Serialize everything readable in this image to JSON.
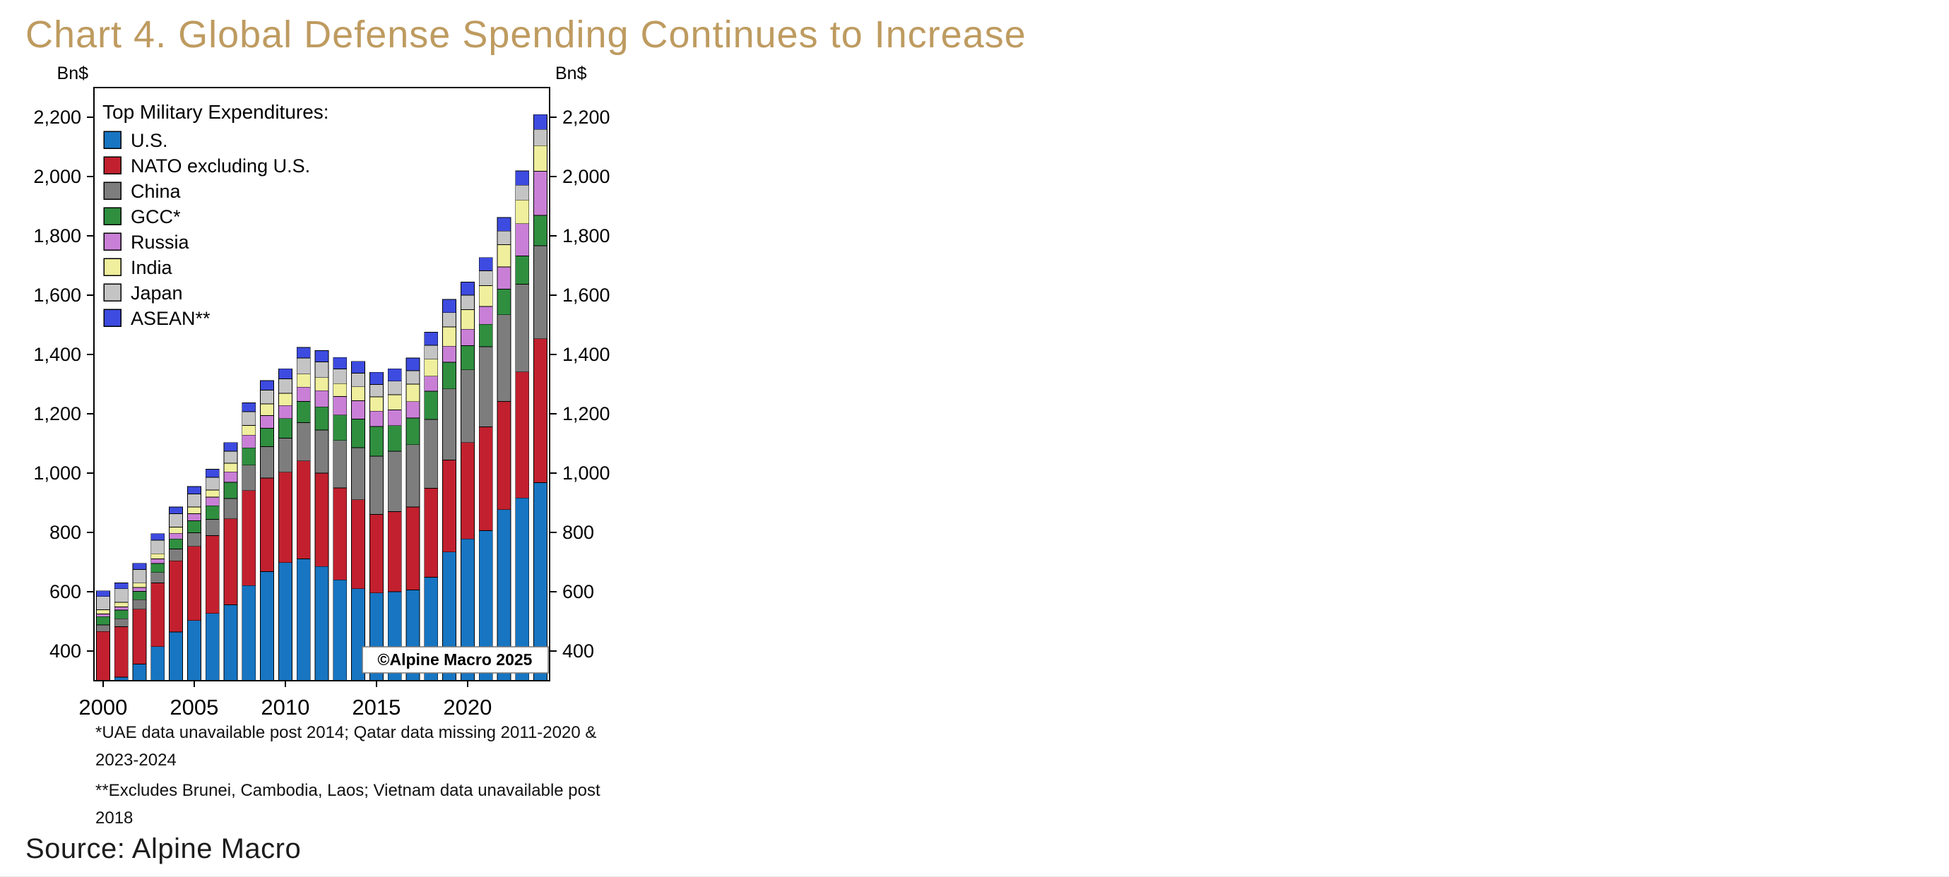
{
  "page": {
    "title": "Chart 4. Global Defense Spending Continues to Increase",
    "title_color": "#be9b60",
    "footnotes": [
      "*UAE data unavailable post 2014; Qatar data missing 2011-2020 & 2023-2024",
      "**Excludes Brunei, Cambodia, Laos; Vietnam data unavailable post 2018"
    ],
    "source": "Source: Alpine Macro"
  },
  "chart_data": {
    "type": "bar",
    "stacked": true,
    "legend_title": "Top Military Expenditures:",
    "legend_position": "top-left-inside",
    "axis_unit_label": "Bn$",
    "watermark": "©Alpine Macro 2025",
    "grid": false,
    "x": [
      2000,
      2001,
      2002,
      2003,
      2004,
      2005,
      2006,
      2007,
      2008,
      2009,
      2010,
      2011,
      2012,
      2013,
      2014,
      2015,
      2016,
      2017,
      2018,
      2019,
      2020,
      2021,
      2022,
      2023,
      2024
    ],
    "x_tick_years": [
      2000,
      2005,
      2010,
      2015,
      2020
    ],
    "ylim": [
      300,
      2300
    ],
    "yticks": [
      400,
      600,
      800,
      1000,
      1200,
      1400,
      1600,
      1800,
      2000,
      2200
    ],
    "series": [
      {
        "name": "U.S.",
        "color": "#1775c2",
        "values": [
          301,
          312,
          356,
          415,
          464,
          503,
          527,
          556,
          621,
          668,
          698,
          711,
          685,
          640,
          610,
          596,
          600,
          606,
          649,
          734,
          778,
          806,
          877,
          916,
          968
        ]
      },
      {
        "name": "NATO excluding U.S.",
        "color": "#c2202e",
        "values": [
          165,
          170,
          185,
          215,
          240,
          250,
          262,
          290,
          320,
          315,
          305,
          330,
          315,
          310,
          300,
          265,
          270,
          280,
          300,
          310,
          325,
          350,
          365,
          425,
          485
        ]
      },
      {
        "name": "China",
        "color": "#7d7d7d",
        "values": [
          22,
          27,
          32,
          35,
          40,
          46,
          55,
          68,
          86,
          106,
          115,
          129,
          145,
          160,
          176,
          196,
          204,
          210,
          232,
          240,
          245,
          270,
          292,
          296,
          314
        ]
      },
      {
        "name": "GCC*",
        "color": "#2f8f3f",
        "values": [
          28,
          29,
          28,
          30,
          34,
          40,
          46,
          55,
          58,
          62,
          66,
          72,
          78,
          86,
          96,
          100,
          86,
          90,
          95,
          90,
          82,
          76,
          86,
          95,
          102
        ]
      },
      {
        "name": "Russia",
        "color": "#c97fd6",
        "values": [
          9,
          11,
          13,
          16,
          19,
          24,
          29,
          35,
          43,
          43,
          44,
          48,
          55,
          62,
          62,
          52,
          53,
          55,
          51,
          54,
          55,
          60,
          75,
          109,
          149
        ]
      },
      {
        "name": "India",
        "color": "#efef9d",
        "values": [
          14,
          15,
          15,
          17,
          21,
          23,
          24,
          29,
          33,
          39,
          41,
          44,
          44,
          44,
          47,
          48,
          51,
          59,
          57,
          65,
          66,
          70,
          75,
          80,
          86
        ]
      },
      {
        "name": "Japan",
        "color": "#c4c4c4",
        "values": [
          45,
          46,
          46,
          46,
          45,
          44,
          43,
          41,
          46,
          47,
          49,
          54,
          53,
          49,
          46,
          42,
          46,
          45,
          47,
          48,
          49,
          50,
          46,
          50,
          55
        ]
      },
      {
        "name": "ASEAN**",
        "color": "#3d4be0",
        "values": [
          19,
          20,
          21,
          22,
          23,
          25,
          27,
          29,
          30,
          32,
          34,
          36,
          38,
          39,
          40,
          41,
          42,
          43,
          44,
          45,
          44,
          45,
          46,
          48,
          50
        ]
      }
    ]
  }
}
